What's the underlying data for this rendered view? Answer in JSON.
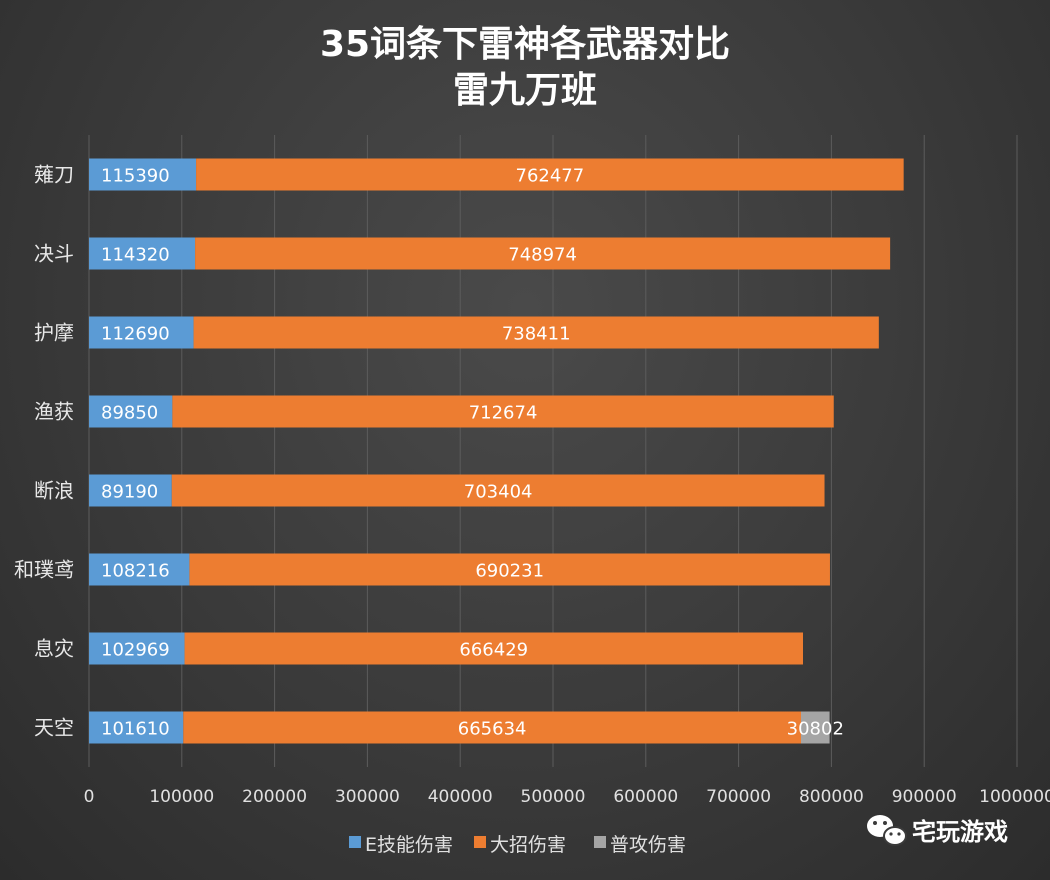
{
  "title": {
    "line1": "35词条下雷神各武器对比",
    "line2": "雷九万班"
  },
  "watermark": {
    "text": "宅玩游戏",
    "icon": "wechat-icon"
  },
  "chart_data": {
    "type": "bar",
    "orientation": "horizontal",
    "stacked": true,
    "categories": [
      "薙刀",
      "决斗",
      "护摩",
      "渔获",
      "断浪",
      "和璞鸢",
      "息灾",
      "天空"
    ],
    "series": [
      {
        "name": "E技能伤害",
        "color": "#5b9bd5",
        "values": [
          115390,
          114320,
          112690,
          89850,
          89190,
          108216,
          102969,
          101610
        ]
      },
      {
        "name": "大招伤害",
        "color": "#ed7d31",
        "values": [
          762477,
          748974,
          738411,
          712674,
          703404,
          690231,
          666429,
          665634
        ]
      },
      {
        "name": "普攻伤害",
        "color": "#a5a5a5",
        "values": [
          0,
          0,
          0,
          0,
          0,
          0,
          0,
          30802
        ]
      }
    ],
    "xlim": [
      0,
      1000000
    ],
    "xticks": [
      "0",
      "100000",
      "200000",
      "300000",
      "400000",
      "500000",
      "600000",
      "700000",
      "800000",
      "900000",
      "1000000"
    ],
    "grid": true,
    "legend_position": "bottom"
  }
}
